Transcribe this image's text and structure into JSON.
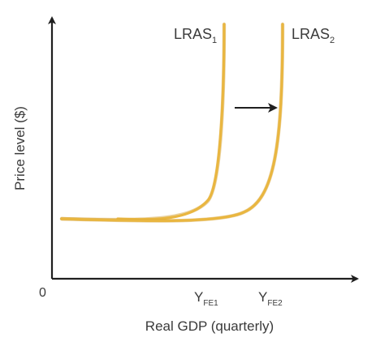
{
  "chart_data": {
    "type": "line",
    "title": "",
    "xlabel": "Real GDP (quarterly)",
    "ylabel": "Price level ($)",
    "origin_label": "0",
    "series": [
      {
        "name": "LRAS",
        "name_sub": "1",
        "color": "#e9b640"
      },
      {
        "name": "LRAS",
        "name_sub": "2",
        "color": "#e9b640"
      }
    ],
    "x_ticks": [
      {
        "label": "Y",
        "sub": "FE1"
      },
      {
        "label": "Y",
        "sub": "FE2"
      }
    ],
    "annotations": [
      {
        "type": "arrow",
        "direction": "right",
        "meaning": "shift of LRAS from LRAS1 to LRAS2"
      }
    ],
    "grid": false,
    "legend": "none"
  }
}
